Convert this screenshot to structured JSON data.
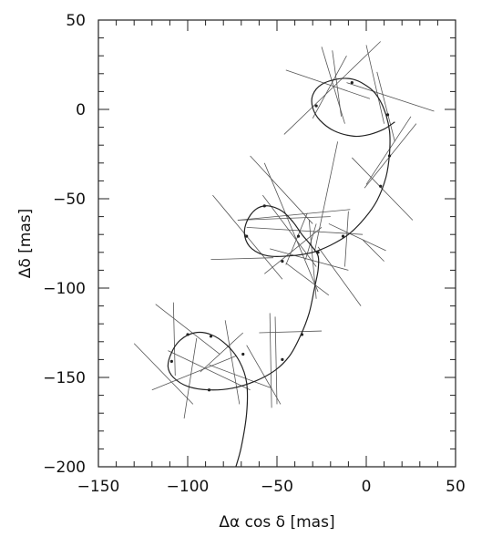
{
  "chart_data": {
    "type": "line",
    "xlabel": "Δα cos δ  [mas]",
    "ylabel": "Δδ  [mas]",
    "xlim": [
      -150,
      50
    ],
    "ylim": [
      -200,
      50
    ],
    "x_ticks": [
      -150,
      -100,
      -50,
      0,
      50
    ],
    "y_ticks": [
      -200,
      -150,
      -100,
      -50,
      0,
      50
    ],
    "grid": false,
    "axis_color": "#222222",
    "series": [
      {
        "values": [
          [
            -73,
            -200
          ],
          [
            -70,
            -189
          ],
          [
            -67,
            -170
          ],
          [
            -67,
            -153
          ],
          [
            -71,
            -141
          ],
          [
            -78,
            -132
          ],
          [
            -87,
            -126
          ],
          [
            -96,
            -125
          ],
          [
            -104,
            -129
          ],
          [
            -109,
            -136
          ],
          [
            -111,
            -144
          ],
          [
            -108,
            -150
          ],
          [
            -100,
            -155
          ],
          [
            -88,
            -157
          ],
          [
            -75,
            -156
          ],
          [
            -62,
            -152
          ],
          [
            -51,
            -146
          ],
          [
            -43,
            -138
          ],
          [
            -37,
            -127
          ],
          [
            -32,
            -114
          ],
          [
            -29,
            -100
          ],
          [
            -27,
            -90
          ],
          [
            -27,
            -82
          ],
          [
            -31,
            -76
          ],
          [
            -36,
            -70
          ],
          [
            -41,
            -63
          ],
          [
            -47,
            -57
          ],
          [
            -55,
            -54
          ],
          [
            -62,
            -56
          ],
          [
            -67,
            -63
          ],
          [
            -68,
            -71
          ],
          [
            -64,
            -78
          ],
          [
            -55,
            -82
          ],
          [
            -43,
            -82
          ],
          [
            -30,
            -80
          ],
          [
            -20,
            -76
          ],
          [
            -10,
            -70
          ],
          [
            -1,
            -61
          ],
          [
            6,
            -51
          ],
          [
            11,
            -38
          ],
          [
            13,
            -25
          ],
          [
            13,
            -12
          ],
          [
            10,
            0
          ],
          [
            5,
            9
          ],
          [
            -1,
            14
          ],
          [
            -8,
            17
          ],
          [
            -16,
            17
          ],
          [
            -25,
            14
          ],
          [
            -30,
            8
          ],
          [
            -30,
            1
          ],
          [
            -26,
            -6
          ],
          [
            -18,
            -12
          ],
          [
            -7,
            -15
          ],
          [
            2,
            -14
          ],
          [
            10,
            -11
          ],
          [
            16,
            -7
          ]
        ]
      }
    ],
    "observation_points": [
      [
        -69,
        -137
      ],
      [
        -87,
        -127
      ],
      [
        -100,
        -126
      ],
      [
        -109,
        -141
      ],
      [
        -88,
        -157
      ],
      [
        -47,
        -140
      ],
      [
        -36,
        -126
      ],
      [
        -27,
        -80
      ],
      [
        -47,
        -85
      ],
      [
        -67,
        -71
      ],
      [
        -57,
        -54
      ],
      [
        -38,
        -71
      ],
      [
        -13,
        -71
      ],
      [
        8,
        -43
      ],
      [
        13,
        -26
      ],
      [
        12,
        -3
      ],
      [
        -8,
        15
      ],
      [
        -28,
        2
      ]
    ],
    "error_bars": [
      [
        [
          -130,
          -131
        ],
        [
          -97,
          -165
        ]
      ],
      [
        [
          -120,
          -157
        ],
        [
          -73,
          -138
        ]
      ],
      [
        [
          -111,
          -135
        ],
        [
          -65,
          -157
        ]
      ],
      [
        [
          -108,
          -108
        ],
        [
          -107,
          -149
        ]
      ],
      [
        [
          -118,
          -109
        ],
        [
          -82,
          -137
        ]
      ],
      [
        [
          -93,
          -147
        ],
        [
          -69,
          -125
        ]
      ],
      [
        [
          -102,
          -173
        ],
        [
          -95,
          -128
        ]
      ],
      [
        [
          -79,
          -118
        ],
        [
          -71,
          -165
        ]
      ],
      [
        [
          -88,
          -143
        ],
        [
          -53,
          -156
        ]
      ],
      [
        [
          -67,
          -132
        ],
        [
          -48,
          -165
        ]
      ],
      [
        [
          -60,
          -125
        ],
        [
          -25,
          -124
        ]
      ],
      [
        [
          -54,
          -114
        ],
        [
          -53,
          -167
        ]
      ],
      [
        [
          -51,
          -116
        ],
        [
          -50,
          -165
        ]
      ],
      [
        [
          -87,
          -84
        ],
        [
          -52,
          -83
        ]
      ],
      [
        [
          -72,
          -62
        ],
        [
          -9,
          -56
        ]
      ],
      [
        [
          -86,
          -48
        ],
        [
          -47,
          -95
        ]
      ],
      [
        [
          -57,
          -30
        ],
        [
          -27,
          -102
        ]
      ],
      [
        [
          -65,
          -26
        ],
        [
          -30,
          -64
        ]
      ],
      [
        [
          -58,
          -48
        ],
        [
          -28,
          -88
        ]
      ],
      [
        [
          -72,
          -62
        ],
        [
          -20,
          -60
        ]
      ],
      [
        [
          -67,
          -66
        ],
        [
          -2,
          -70
        ]
      ],
      [
        [
          -57,
          -92
        ],
        [
          -25,
          -66
        ]
      ],
      [
        [
          -27,
          -77
        ],
        [
          -3,
          -110
        ]
      ],
      [
        [
          -21,
          -64
        ],
        [
          11,
          -79
        ]
      ],
      [
        [
          -45,
          -86
        ],
        [
          -21,
          -104
        ]
      ],
      [
        [
          -54,
          -78
        ],
        [
          -10,
          -90
        ]
      ],
      [
        [
          -45,
          -87
        ],
        [
          -33,
          -58
        ]
      ],
      [
        [
          -10,
          -57
        ],
        [
          -12,
          -88
        ]
      ],
      [
        [
          -32,
          -62
        ],
        [
          -28,
          -106
        ]
      ],
      [
        [
          -16,
          -18
        ],
        [
          -29,
          -80
        ]
      ],
      [
        [
          -28,
          -64
        ],
        [
          -34,
          -84
        ]
      ],
      [
        [
          -2,
          -73
        ],
        [
          10,
          -85
        ]
      ],
      [
        [
          -8,
          -27
        ],
        [
          26,
          -62
        ]
      ],
      [
        [
          -1,
          -44
        ],
        [
          28,
          -8
        ]
      ],
      [
        [
          0,
          -42
        ],
        [
          25,
          -4
        ]
      ],
      [
        [
          -46,
          -14
        ],
        [
          8,
          38
        ]
      ],
      [
        [
          -11,
          15
        ],
        [
          38,
          -1
        ]
      ],
      [
        [
          -30,
          -5
        ],
        [
          -11,
          30
        ]
      ],
      [
        [
          -45,
          22
        ],
        [
          2,
          6
        ]
      ],
      [
        [
          -25,
          35
        ],
        [
          -12,
          -8
        ]
      ],
      [
        [
          0,
          36
        ],
        [
          10,
          -8
        ]
      ],
      [
        [
          6,
          21
        ],
        [
          16,
          -18
        ]
      ],
      [
        [
          -19,
          33
        ],
        [
          -14,
          -4
        ]
      ]
    ]
  }
}
